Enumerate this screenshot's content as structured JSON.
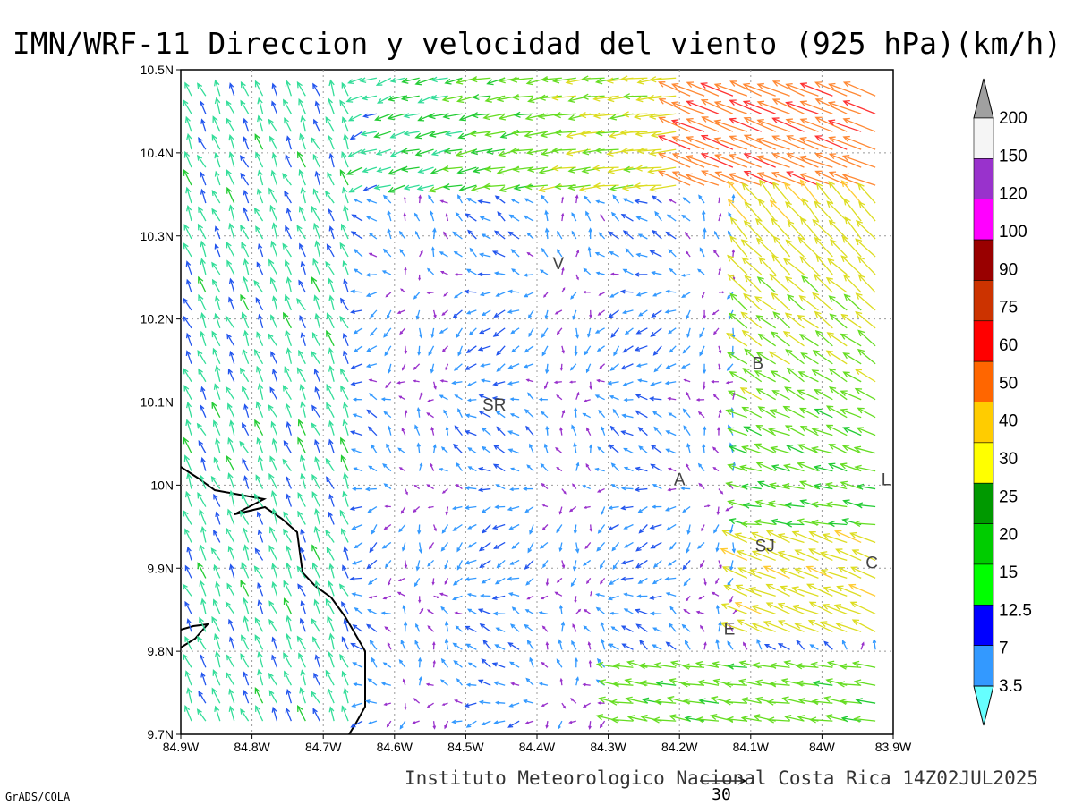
{
  "title": "IMN/WRF-11 Direccion y velocidad del viento (925 hPa)(km/h)",
  "footer": "Instituto Meteorologico Nacional Costa Rica 14Z02JUL2025",
  "credit": "GrADS/COLA",
  "reference_vector_label": "30",
  "axes": {
    "lon_ticks": [
      "84.9W",
      "84.8W",
      "84.7W",
      "84.6W",
      "84.5W",
      "84.4W",
      "84.3W",
      "84.2W",
      "84.1W",
      "84W",
      "83.9W"
    ],
    "lat_ticks": [
      "10.5N",
      "10.4N",
      "10.3N",
      "10.2N",
      "10.1N",
      "10N",
      "9.9N",
      "9.8N",
      "9.7N"
    ]
  },
  "places": [
    {
      "label": "V",
      "lon": -84.37,
      "lat": 10.26
    },
    {
      "label": "SR",
      "lon": -84.46,
      "lat": 10.09
    },
    {
      "label": "B",
      "lon": -84.09,
      "lat": 10.14
    },
    {
      "label": "A",
      "lon": -84.2,
      "lat": 10.0
    },
    {
      "label": "SJ",
      "lon": -84.08,
      "lat": 9.92
    },
    {
      "label": "C",
      "lon": -83.93,
      "lat": 9.9
    },
    {
      "label": "L",
      "lon": -83.91,
      "lat": 10.0
    },
    {
      "label": "E",
      "lon": -84.13,
      "lat": 9.82
    }
  ],
  "colorbar": {
    "labels": [
      "200",
      "150",
      "120",
      "100",
      "90",
      "75",
      "60",
      "50",
      "40",
      "30",
      "25",
      "20",
      "15",
      "12.5",
      "7",
      "3.5"
    ],
    "colors": [
      "#a0a0a0",
      "#f5f5f5",
      "#9932cc",
      "#ff00ff",
      "#990000",
      "#cc3300",
      "#ff0000",
      "#ff6600",
      "#ffcc00",
      "#ffff00",
      "#009900",
      "#00cc00",
      "#00ff00",
      "#0000ff",
      "#3399ff",
      "#66ffff"
    ]
  }
}
